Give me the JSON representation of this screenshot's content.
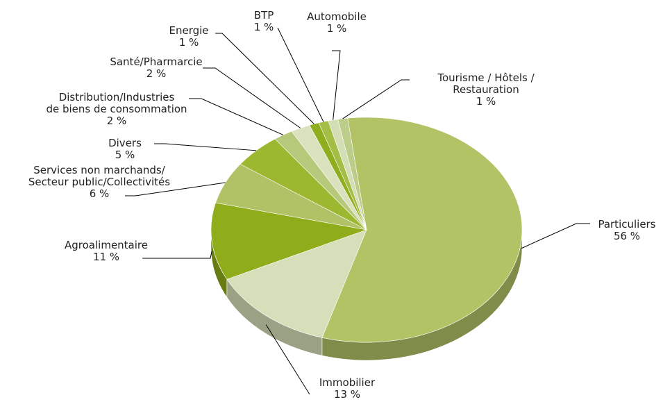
{
  "chart_data": {
    "type": "pie",
    "categories": [
      "Particuliers",
      "Immobilier",
      "Agroalimentaire",
      "Services non marchands/\nSecteur public/Collectivités",
      "Divers",
      "Distribution/Industries\nde biens de consommation",
      "Santé/Pharmarcie",
      "Energie",
      "BTP",
      "Automobile",
      "Tourisme / Hôtels /\nRestauration"
    ],
    "values": [
      56,
      13,
      11,
      6,
      5,
      2,
      2,
      1,
      1,
      1,
      1
    ],
    "value_labels": [
      "56 %",
      "13 %",
      "11 %",
      "6 %",
      "5 %",
      "2 %",
      "2 %",
      "1 %",
      "1 %",
      "1 %",
      "1 %"
    ],
    "colors": [
      "#b2c365",
      "#d6dfb9",
      "#8fac1a",
      "#b0c265",
      "#9cb831",
      "#b6c97a",
      "#d9e2bd",
      "#8fae1e",
      "#a4bd45",
      "#d4deb4",
      "#bccd8a"
    ]
  }
}
